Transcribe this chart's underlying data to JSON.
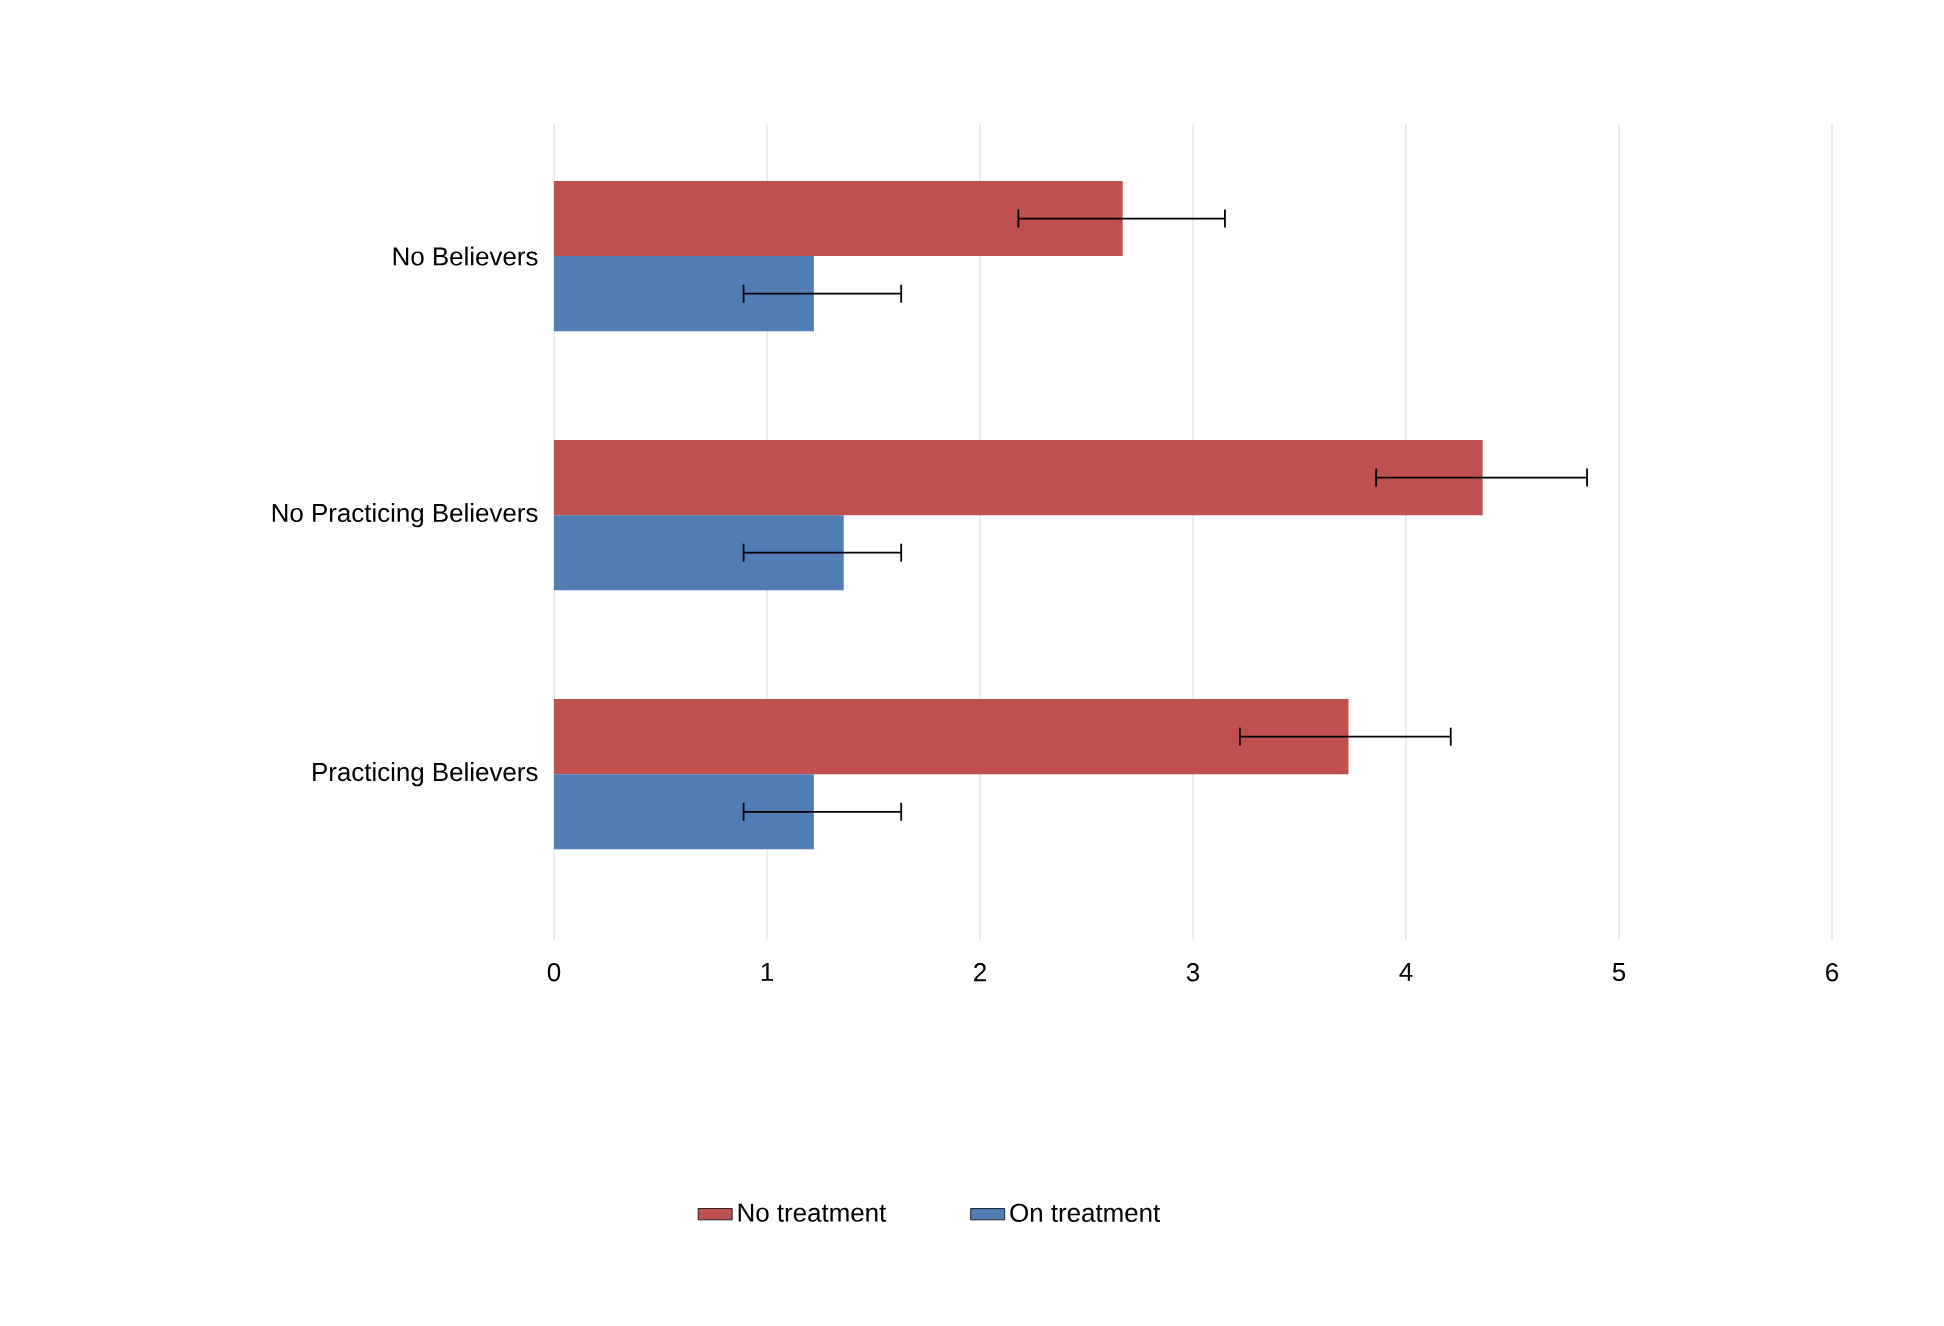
{
  "chart_data": {
    "type": "bar",
    "orientation": "horizontal",
    "categories": [
      "No Believers",
      "No Practicing Believers",
      "Practicing Believers"
    ],
    "series": [
      {
        "name": "No treatment",
        "color": "#c0504d",
        "values": [
          2.67,
          4.36,
          3.73
        ],
        "errors": [
          [
            2.18,
            3.15
          ],
          [
            3.86,
            4.85
          ],
          [
            3.22,
            4.21
          ]
        ]
      },
      {
        "name": "On treatment",
        "color": "#4f7db4",
        "values": [
          1.22,
          1.36,
          1.22
        ],
        "errors": [
          [
            0.89,
            1.63
          ],
          [
            0.89,
            1.63
          ],
          [
            0.89,
            1.63
          ]
        ]
      }
    ],
    "xlim": [
      0,
      6
    ],
    "xticks": [
      0,
      1,
      2,
      3,
      4,
      5,
      6
    ],
    "grid": "x",
    "legend": "bottom"
  }
}
